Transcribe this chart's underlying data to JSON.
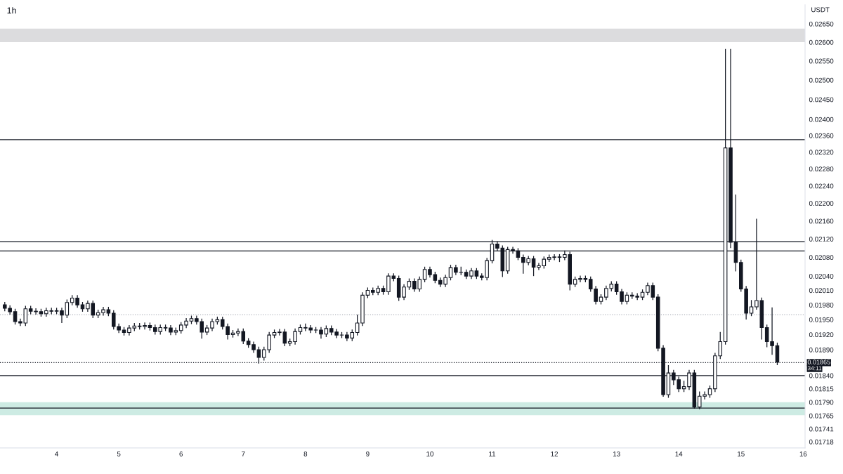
{
  "chart_data": {
    "type": "candlestick",
    "title": "1h",
    "ylabel": "USDT",
    "log": "y",
    "grid": false,
    "color": "#131722",
    "x": [
      3.1667,
      3.25,
      3.3333,
      3.4167,
      3.5,
      3.5833,
      3.6667,
      3.75,
      3.8333,
      3.9167,
      4,
      4.0833,
      4.1667,
      4.25,
      4.3333,
      4.4167,
      4.5,
      4.5833,
      4.6667,
      4.75,
      4.8333,
      4.9167,
      5,
      5.0833,
      5.1667,
      5.25,
      5.3333,
      5.4167,
      5.5,
      5.5833,
      5.6667,
      5.75,
      5.8333,
      5.9167,
      6,
      6.0833,
      6.1667,
      6.25,
      6.3333,
      6.4167,
      6.5,
      6.5833,
      6.6667,
      6.75,
      6.8333,
      6.9167,
      7,
      7.0833,
      7.1667,
      7.25,
      7.3333,
      7.4167,
      7.5,
      7.5833,
      7.6667,
      7.75,
      7.8333,
      7.9167,
      8,
      8.0833,
      8.1667,
      8.25,
      8.3333,
      8.4167,
      8.5,
      8.5833,
      8.6667,
      8.75,
      8.8333,
      8.9167,
      9,
      9.0833,
      9.1667,
      9.25,
      9.3333,
      9.4167,
      9.5,
      9.5833,
      9.6667,
      9.75,
      9.8333,
      9.9167,
      10,
      10.0833,
      10.1667,
      10.25,
      10.3333,
      10.4167,
      10.5,
      10.5833,
      10.6667,
      10.75,
      10.8333,
      10.9167,
      11,
      11.0833,
      11.1667,
      11.25,
      11.3333,
      11.4167,
      11.5,
      11.5833,
      11.6667,
      11.75,
      11.8333,
      11.9167,
      12,
      12.0833,
      12.1667,
      12.25,
      12.3333,
      12.4167,
      12.5,
      12.5833,
      12.6667,
      12.75,
      12.8333,
      12.9167,
      13,
      13.0833,
      13.1667,
      13.25,
      13.3333,
      13.4167,
      13.5,
      13.5833,
      13.6667,
      13.75,
      13.8333,
      13.9167,
      14,
      14.0833,
      14.1667,
      14.25,
      14.3333,
      14.4167,
      14.5,
      14.5833,
      14.6667,
      14.75,
      14.8333,
      14.9167,
      15,
      15.0833,
      15.1667,
      15.25,
      15.3333,
      15.4167,
      15.5,
      15.5833
    ],
    "ohlc": [
      [
        0.0198,
        0.01986,
        0.01967,
        0.01973
      ],
      [
        0.01973,
        0.01979,
        0.0196,
        0.01966
      ],
      [
        0.01966,
        0.01972,
        0.0194,
        0.01946
      ],
      [
        0.01946,
        0.01952,
        0.01937,
        0.01943
      ],
      [
        0.01943,
        0.01978,
        0.01937,
        0.01972
      ],
      [
        0.01972,
        0.01978,
        0.01961,
        0.01967
      ],
      [
        0.01967,
        0.01973,
        0.0196,
        0.01966
      ],
      [
        0.01966,
        0.01972,
        0.01956,
        0.01962
      ],
      [
        0.01962,
        0.01974,
        0.01956,
        0.01968
      ],
      [
        0.01968,
        0.01974,
        0.01961,
        0.01967
      ],
      [
        0.01967,
        0.01974,
        0.01961,
        0.01968
      ],
      [
        0.01968,
        0.01974,
        0.01943,
        0.01959
      ],
      [
        0.01959,
        0.01991,
        0.01953,
        0.01985
      ],
      [
        0.01985,
        0.02,
        0.01979,
        0.01994
      ],
      [
        0.01994,
        0.02,
        0.01974,
        0.0198
      ],
      [
        0.0198,
        0.01986,
        0.01966,
        0.01972
      ],
      [
        0.01972,
        0.01989,
        0.01966,
        0.01983
      ],
      [
        0.01983,
        0.01989,
        0.01953,
        0.01959
      ],
      [
        0.01959,
        0.0197,
        0.01953,
        0.01964
      ],
      [
        0.01964,
        0.01976,
        0.01958,
        0.0197
      ],
      [
        0.0197,
        0.01976,
        0.01957,
        0.01963
      ],
      [
        0.01963,
        0.01969,
        0.0193,
        0.01936
      ],
      [
        0.01936,
        0.01942,
        0.01923,
        0.01929
      ],
      [
        0.01929,
        0.01935,
        0.01918,
        0.01924
      ],
      [
        0.01924,
        0.01939,
        0.01918,
        0.01933
      ],
      [
        0.01933,
        0.01943,
        0.01927,
        0.01937
      ],
      [
        0.01937,
        0.01943,
        0.0193,
        0.01936
      ],
      [
        0.01936,
        0.01944,
        0.0193,
        0.01938
      ],
      [
        0.01938,
        0.01944,
        0.01928,
        0.01934
      ],
      [
        0.01934,
        0.0194,
        0.0192,
        0.01926
      ],
      [
        0.01926,
        0.0194,
        0.0192,
        0.01934
      ],
      [
        0.01934,
        0.0194,
        0.01927,
        0.01933
      ],
      [
        0.01933,
        0.01939,
        0.01919,
        0.01925
      ],
      [
        0.01925,
        0.01934,
        0.01919,
        0.01928
      ],
      [
        0.01928,
        0.01945,
        0.01922,
        0.01939
      ],
      [
        0.01939,
        0.01953,
        0.01933,
        0.01947
      ],
      [
        0.01947,
        0.01958,
        0.01941,
        0.01952
      ],
      [
        0.01952,
        0.01958,
        0.0194,
        0.01946
      ],
      [
        0.01946,
        0.01952,
        0.01912,
        0.01925
      ],
      [
        0.01925,
        0.01939,
        0.01919,
        0.01933
      ],
      [
        0.01933,
        0.01952,
        0.01927,
        0.01946
      ],
      [
        0.01946,
        0.01956,
        0.0194,
        0.0195
      ],
      [
        0.0195,
        0.01956,
        0.0193,
        0.01936
      ],
      [
        0.01936,
        0.01942,
        0.0191,
        0.0192
      ],
      [
        0.0192,
        0.01929,
        0.01914,
        0.01923
      ],
      [
        0.01923,
        0.01932,
        0.01917,
        0.01926
      ],
      [
        0.01926,
        0.01932,
        0.01901,
        0.01907
      ],
      [
        0.01907,
        0.01913,
        0.01894,
        0.019
      ],
      [
        0.019,
        0.01906,
        0.01884,
        0.0189
      ],
      [
        0.0189,
        0.01896,
        0.01863,
        0.01875
      ],
      [
        0.01875,
        0.01896,
        0.01869,
        0.0189
      ],
      [
        0.0189,
        0.01925,
        0.01884,
        0.01919
      ],
      [
        0.01919,
        0.0193,
        0.01913,
        0.01924
      ],
      [
        0.01924,
        0.01931,
        0.01918,
        0.01925
      ],
      [
        0.01925,
        0.01931,
        0.01897,
        0.01903
      ],
      [
        0.01903,
        0.01912,
        0.01897,
        0.01906
      ],
      [
        0.01906,
        0.01932,
        0.019,
        0.01926
      ],
      [
        0.01926,
        0.0194,
        0.0192,
        0.01934
      ],
      [
        0.01934,
        0.01942,
        0.01927,
        0.01933
      ],
      [
        0.01933,
        0.01939,
        0.01923,
        0.01929
      ],
      [
        0.01929,
        0.01935,
        0.01923,
        0.01929
      ],
      [
        0.01929,
        0.01935,
        0.01912,
        0.01921
      ],
      [
        0.01921,
        0.01938,
        0.01915,
        0.01932
      ],
      [
        0.01932,
        0.01938,
        0.01919,
        0.01925
      ],
      [
        0.01925,
        0.01931,
        0.01913,
        0.01919
      ],
      [
        0.01919,
        0.01925,
        0.01913,
        0.01919
      ],
      [
        0.01919,
        0.01925,
        0.01907,
        0.01913
      ],
      [
        0.01913,
        0.0193,
        0.01907,
        0.01924
      ],
      [
        0.01924,
        0.0196,
        0.01918,
        0.01943
      ],
      [
        0.01943,
        0.02006,
        0.01937,
        0.02
      ],
      [
        0.02,
        0.02016,
        0.01994,
        0.0201
      ],
      [
        0.0201,
        0.02016,
        0.02,
        0.02006
      ],
      [
        0.02006,
        0.0202,
        0.02,
        0.02014
      ],
      [
        0.02014,
        0.0202,
        0.02001,
        0.02007
      ],
      [
        0.02007,
        0.02046,
        0.02001,
        0.0204
      ],
      [
        0.0204,
        0.02046,
        0.02029,
        0.02035
      ],
      [
        0.02035,
        0.02041,
        0.01988,
        0.01996
      ],
      [
        0.01996,
        0.02023,
        0.0199,
        0.02017
      ],
      [
        0.02017,
        0.02035,
        0.02011,
        0.02029
      ],
      [
        0.02029,
        0.02035,
        0.02007,
        0.02013
      ],
      [
        0.02013,
        0.02039,
        0.02007,
        0.02033
      ],
      [
        0.02033,
        0.0206,
        0.02027,
        0.02054
      ],
      [
        0.02054,
        0.0206,
        0.02037,
        0.02043
      ],
      [
        0.02043,
        0.02049,
        0.02025,
        0.02031
      ],
      [
        0.02031,
        0.02037,
        0.02017,
        0.02023
      ],
      [
        0.02023,
        0.02043,
        0.02017,
        0.02037
      ],
      [
        0.02037,
        0.02064,
        0.02031,
        0.02058
      ],
      [
        0.02058,
        0.02064,
        0.02042,
        0.02048
      ],
      [
        0.02048,
        0.0206,
        0.02042,
        0.02048
      ],
      [
        0.02048,
        0.02054,
        0.02034,
        0.0204
      ],
      [
        0.0204,
        0.02057,
        0.02034,
        0.02051
      ],
      [
        0.02051,
        0.02057,
        0.02034,
        0.0204
      ],
      [
        0.0204,
        0.02046,
        0.02031,
        0.02037
      ],
      [
        0.02037,
        0.02079,
        0.02031,
        0.02073
      ],
      [
        0.02073,
        0.02118,
        0.02067,
        0.02109
      ],
      [
        0.02109,
        0.02115,
        0.02094,
        0.021
      ],
      [
        0.021,
        0.02106,
        0.02038,
        0.02051
      ],
      [
        0.02051,
        0.02103,
        0.02045,
        0.02097
      ],
      [
        0.02097,
        0.02103,
        0.02088,
        0.02094
      ],
      [
        0.02094,
        0.021,
        0.02074,
        0.0208
      ],
      [
        0.0208,
        0.02086,
        0.02045,
        0.02069
      ],
      [
        0.02069,
        0.02083,
        0.02063,
        0.02077
      ],
      [
        0.02077,
        0.02083,
        0.0204,
        0.02059
      ],
      [
        0.02059,
        0.02068,
        0.02053,
        0.02062
      ],
      [
        0.02062,
        0.02082,
        0.02056,
        0.02076
      ],
      [
        0.02076,
        0.02086,
        0.0207,
        0.0208
      ],
      [
        0.0208,
        0.02087,
        0.02074,
        0.02081
      ],
      [
        0.02081,
        0.02087,
        0.0207,
        0.0208
      ],
      [
        0.0208,
        0.02095,
        0.02074,
        0.02086
      ],
      [
        0.02086,
        0.02092,
        0.0201,
        0.02023
      ],
      [
        0.02023,
        0.02039,
        0.02017,
        0.02033
      ],
      [
        0.02033,
        0.02041,
        0.02027,
        0.02035
      ],
      [
        0.02035,
        0.02041,
        0.02027,
        0.02033
      ],
      [
        0.02033,
        0.02039,
        0.02007,
        0.02013
      ],
      [
        0.02013,
        0.02019,
        0.01981,
        0.01987
      ],
      [
        0.01987,
        0.02002,
        0.01981,
        0.01996
      ],
      [
        0.01996,
        0.0202,
        0.0199,
        0.02014
      ],
      [
        0.02014,
        0.02029,
        0.02008,
        0.02023
      ],
      [
        0.02023,
        0.02029,
        0.02001,
        0.02007
      ],
      [
        0.02007,
        0.02013,
        0.01981,
        0.01987
      ],
      [
        0.01987,
        0.02006,
        0.01981,
        0.02
      ],
      [
        0.02,
        0.02006,
        0.01992,
        0.01998
      ],
      [
        0.01998,
        0.02004,
        0.0199,
        0.01996
      ],
      [
        0.01996,
        0.02012,
        0.0199,
        0.02006
      ],
      [
        0.02006,
        0.02026,
        0.02,
        0.0202
      ],
      [
        0.0202,
        0.02026,
        0.0199,
        0.01996
      ],
      [
        0.01996,
        0.02002,
        0.01887,
        0.01893
      ],
      [
        0.01893,
        0.01899,
        0.018,
        0.01804
      ],
      [
        0.01804,
        0.0186,
        0.01798,
        0.01845
      ],
      [
        0.01845,
        0.01851,
        0.01822,
        0.01832
      ],
      [
        0.01832,
        0.01838,
        0.01809,
        0.01815
      ],
      [
        0.01815,
        0.0183,
        0.01809,
        0.01819
      ],
      [
        0.01819,
        0.01851,
        0.01813,
        0.01845
      ],
      [
        0.01845,
        0.01851,
        0.01778,
        0.01781
      ],
      [
        0.01781,
        0.0181,
        0.01777,
        0.01801
      ],
      [
        0.01801,
        0.0181,
        0.01795,
        0.01804
      ],
      [
        0.01804,
        0.01821,
        0.01798,
        0.01815
      ],
      [
        0.01815,
        0.01884,
        0.01809,
        0.01878
      ],
      [
        0.01878,
        0.01925,
        0.01872,
        0.01906
      ],
      [
        0.01906,
        0.02582,
        0.019,
        0.0233
      ],
      [
        0.0233,
        0.02582,
        0.021,
        0.02113
      ],
      [
        0.02113,
        0.0222,
        0.0205,
        0.02069
      ],
      [
        0.02069,
        0.02075,
        0.02007,
        0.02013
      ],
      [
        0.02013,
        0.02019,
        0.0195,
        0.01963
      ],
      [
        0.01963,
        0.0199,
        0.01957,
        0.01976
      ],
      [
        0.01976,
        0.02165,
        0.0197,
        0.01989
      ],
      [
        0.01989,
        0.01995,
        0.0191,
        0.01934
      ],
      [
        0.01934,
        0.0194,
        0.01895,
        0.01906
      ],
      [
        0.01906,
        0.01975,
        0.0188,
        0.01898
      ],
      [
        0.01898,
        0.01904,
        0.0186,
        0.01866
      ]
    ],
    "xlim": [
      3.09,
      16.03
    ],
    "xticks": [
      4,
      5,
      6,
      7,
      8,
      9,
      10,
      11,
      12,
      13,
      14,
      15,
      16
    ],
    "ylim": [
      0.01707,
      0.02703
    ],
    "yticks": [
      {
        "value": 0.0265,
        "label": "0.02650"
      },
      {
        "value": 0.026,
        "label": "0.02600"
      },
      {
        "value": 0.0255,
        "label": "0.02550"
      },
      {
        "value": 0.025,
        "label": "0.02500"
      },
      {
        "value": 0.0245,
        "label": "0.02450"
      },
      {
        "value": 0.024,
        "label": "0.02400"
      },
      {
        "value": 0.0236,
        "label": "0.02360"
      },
      {
        "value": 0.0232,
        "label": "0.02320"
      },
      {
        "value": 0.0228,
        "label": "0.02280"
      },
      {
        "value": 0.0224,
        "label": "0.02240"
      },
      {
        "value": 0.022,
        "label": "0.02200"
      },
      {
        "value": 0.0216,
        "label": "0.02160"
      },
      {
        "value": 0.0212,
        "label": "0.02120"
      },
      {
        "value": 0.0208,
        "label": "0.02080"
      },
      {
        "value": 0.0204,
        "label": "0.02040"
      },
      {
        "value": 0.0201,
        "label": "0.02010"
      },
      {
        "value": 0.0198,
        "label": "0.01980"
      },
      {
        "value": 0.0195,
        "label": "0.01950"
      },
      {
        "value": 0.0192,
        "label": "0.01920"
      },
      {
        "value": 0.0189,
        "label": "0.01890"
      },
      {
        "value": 0.0184,
        "label": "0.01840"
      },
      {
        "value": 0.01815,
        "label": "0.01815"
      },
      {
        "value": 0.0179,
        "label": "0.01790"
      },
      {
        "value": 0.01765,
        "label": "0.01765"
      },
      {
        "value": 0.01741,
        "label": "0.01741"
      },
      {
        "value": 0.01718,
        "label": "0.01718"
      }
    ],
    "ref_lines": [
      {
        "axis": "y",
        "value": 0.0235,
        "color": "#131722",
        "line_style": "solid"
      },
      {
        "axis": "y",
        "value": 0.02114,
        "color": "#131722",
        "line_style": "solid"
      },
      {
        "axis": "y",
        "value": 0.02094,
        "color": "#131722",
        "line_style": "solid"
      },
      {
        "axis": "y",
        "value": 0.0184,
        "color": "#131722",
        "line_style": "solid"
      },
      {
        "axis": "y",
        "value": 0.01779,
        "color": "#131722",
        "line_style": "solid"
      },
      {
        "axis": "y",
        "value": 0.0196,
        "color": "#b2b5be",
        "line_style": "dotted"
      },
      {
        "axis": "y",
        "value": 0.01865,
        "color": "#131722",
        "line_style": "dotted",
        "label": "0.01865"
      }
    ],
    "bands": [
      {
        "axis": "y",
        "from": 0.026,
        "to": 0.02637,
        "color": "#dcdcde"
      },
      {
        "axis": "y",
        "from": 0.01766,
        "to": 0.0179,
        "color": "#cdebe3"
      }
    ],
    "annotations": [
      "34:11"
    ]
  }
}
